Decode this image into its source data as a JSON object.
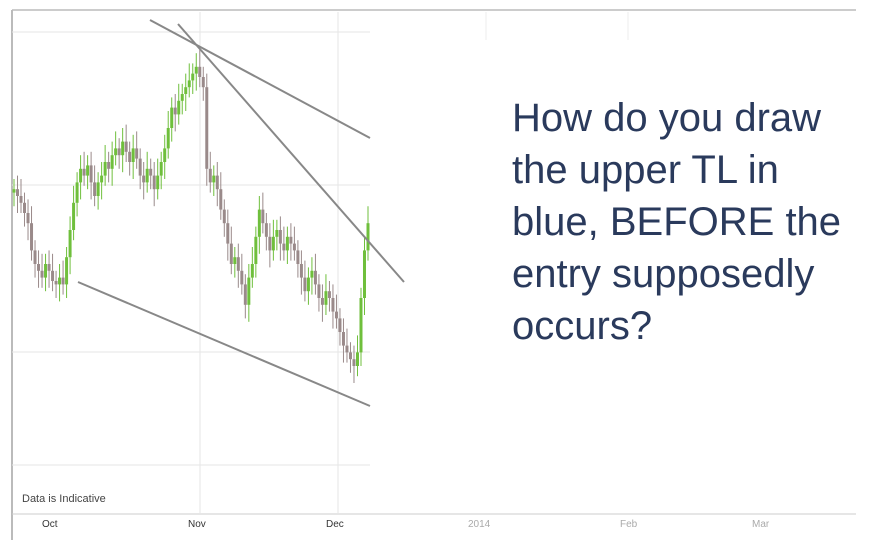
{
  "question_text": "How do you draw\nthe upper TL in\nblue, BEFORE the\nentry supposedly\noccurs?",
  "data_note": "Data is Indicative",
  "colors": {
    "up_candle": "#6fbf3c",
    "down_candle": "#9a8a8a",
    "trendline": "#888888",
    "question_text": "#2a3a5c",
    "gridline": "#e6e6e6"
  },
  "chart_data": {
    "type": "candlestick",
    "x_ticks": [
      {
        "label": "Oct",
        "faint": false
      },
      {
        "label": "Nov",
        "faint": false
      },
      {
        "label": "Dec",
        "faint": false
      },
      {
        "label": "2014",
        "faint": true
      },
      {
        "label": "Feb",
        "faint": true
      },
      {
        "label": "Mar",
        "faint": true
      }
    ],
    "closes": [
      62,
      60,
      58,
      55,
      52,
      44,
      40,
      38,
      36,
      40,
      38,
      35,
      34,
      36,
      34,
      42,
      50,
      58,
      64,
      68,
      66,
      69,
      64,
      60,
      64,
      66,
      70,
      68,
      72,
      74,
      72,
      76,
      73,
      70,
      74,
      71,
      66,
      64,
      68,
      66,
      62,
      66,
      70,
      74,
      80,
      86,
      84,
      88,
      90,
      92,
      94,
      96,
      98,
      95,
      92,
      68,
      64,
      66,
      62,
      56,
      52,
      46,
      40,
      42,
      38,
      34,
      28,
      36,
      40,
      48,
      56,
      52,
      48,
      44,
      48,
      50,
      46,
      44,
      48,
      46,
      44,
      40,
      36,
      32,
      36,
      38,
      34,
      30,
      28,
      32,
      30,
      26,
      24,
      20,
      16,
      14,
      12,
      10,
      14,
      30,
      44,
      52
    ]
  },
  "trendlines": [
    {
      "name": "lower channel line"
    },
    {
      "name": "upper channel line"
    },
    {
      "name": "steep downtrend line"
    }
  ]
}
